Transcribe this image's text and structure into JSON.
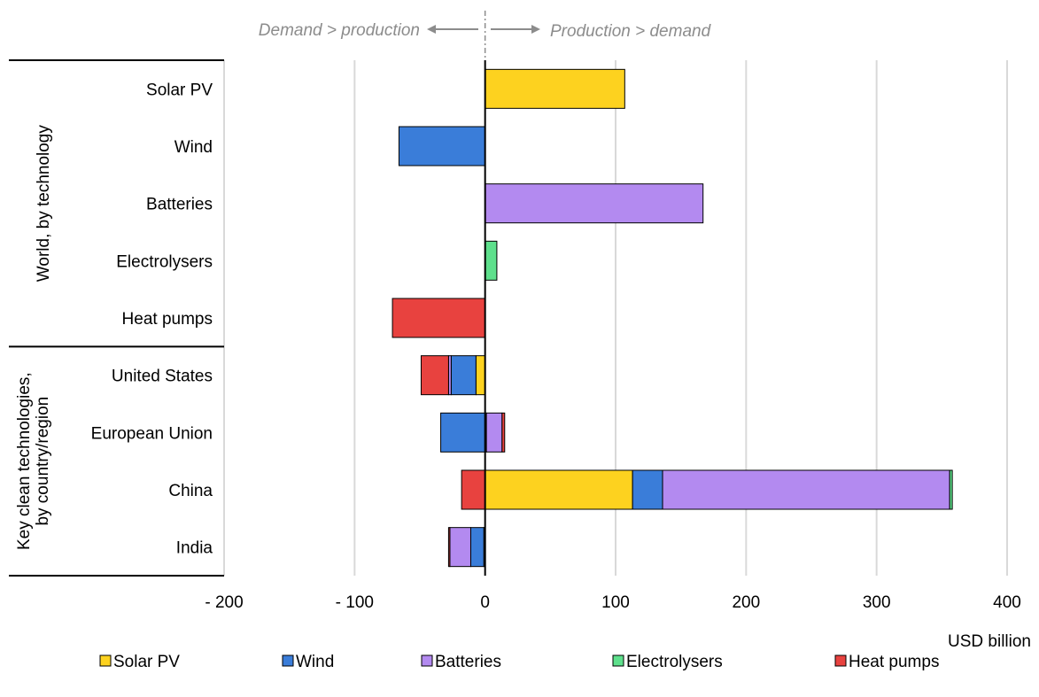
{
  "chart_data": {
    "type": "bar",
    "orientation": "horizontal",
    "stacked": true,
    "annotations": {
      "left": "Demand > production",
      "right": "Production > demand"
    },
    "unit_label": "USD billion",
    "xlim": [
      -200,
      400
    ],
    "x_ticks": [
      -200,
      -100,
      0,
      100,
      200,
      300,
      400
    ],
    "x_tick_labels": [
      "- 200",
      "- 100",
      "0",
      "100",
      "200",
      "300",
      "400"
    ],
    "grid": true,
    "legend_position": "bottom",
    "groups": [
      {
        "label": "World, by technology",
        "categories": [
          "Solar PV",
          "Wind",
          "Batteries",
          "Electrolysers",
          "Heat pumps"
        ]
      },
      {
        "label": "Key clean technologies, by country/region",
        "label_lines": [
          "Key clean technologies,",
          "by country/region"
        ],
        "categories": [
          "United States",
          "European Union",
          "China",
          "India"
        ]
      }
    ],
    "categories": [
      "Solar PV",
      "Wind",
      "Batteries",
      "Electrolysers",
      "Heat pumps",
      "United States",
      "European Union",
      "China",
      "India"
    ],
    "series": [
      {
        "name": "Solar PV",
        "color": "#FDD21F",
        "values": [
          107,
          0,
          0,
          0,
          0,
          -7,
          1,
          113,
          -1
        ]
      },
      {
        "name": "Wind",
        "color": "#3A7DD9",
        "values": [
          0,
          -66,
          0,
          0,
          0,
          -19,
          -34,
          23,
          -10
        ]
      },
      {
        "name": "Batteries",
        "color": "#B38AF0",
        "values": [
          0,
          0,
          167,
          0,
          0,
          -2,
          12,
          220,
          -16
        ]
      },
      {
        "name": "Electrolysers",
        "color": "#5EE08C",
        "values": [
          0,
          0,
          0,
          9,
          0,
          0,
          0,
          2,
          0
        ]
      },
      {
        "name": "Heat pumps",
        "color": "#E8423F",
        "values": [
          0,
          0,
          0,
          0,
          -71,
          -21,
          2,
          -18,
          -1
        ]
      }
    ]
  }
}
